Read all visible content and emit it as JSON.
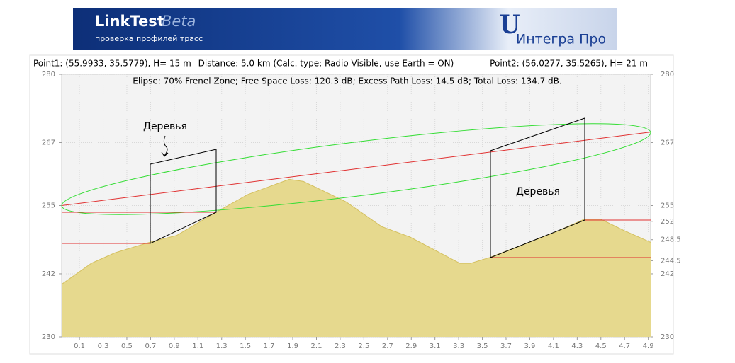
{
  "header": {
    "title": "LinkTest",
    "beta": "Beta",
    "subtitle": "проверка профилей трасс",
    "logo": "Интегра Про"
  },
  "chart_data": {
    "type": "area",
    "point1": "Point1: (55.9933, 35.5779), H= 15 m",
    "distance": "Distance: 5.0 km (Calc. type: Radio Visible, use Earth = ON)",
    "point2": "Point2: (56.0277, 35.5265), H= 21 m",
    "subtitle": "Elipse: 70% Frenel Zone;  Free Space Loss: 120.3 dB;  Excess Path Loss: 14.5 dB;  Total Loss: 134.7 dB.",
    "annotations": [
      "Деревья",
      "Деревья"
    ],
    "terrain": {
      "color": "#e6d98e",
      "x": [
        -0.05,
        0.2,
        0.4,
        0.69,
        0.92,
        1.25,
        1.52,
        1.87,
        1.99,
        2.35,
        2.65,
        2.89,
        3.31,
        3.4,
        3.56,
        4.09,
        4.36,
        4.5,
        4.69,
        4.92
      ],
      "values": [
        240,
        244,
        246,
        248,
        249.3,
        253.7,
        257.1,
        260,
        259.6,
        255.7,
        251,
        249,
        244,
        244,
        245.1,
        249.7,
        252.4,
        252.4,
        250.3,
        248
      ]
    },
    "line_of_sight": {
      "color": "#e03030",
      "x": [
        -0.05,
        4.92
      ],
      "values": [
        255,
        269
      ]
    },
    "xlim": [
      -0.05,
      4.92
    ],
    "xticks": [
      0.1,
      0.3,
      0.5,
      0.7,
      0.9,
      1.1,
      1.3,
      1.5,
      1.7,
      1.9,
      2.1,
      2.3,
      2.5,
      2.7,
      2.9,
      3.1,
      3.3,
      3.5,
      3.7,
      3.9,
      4.1,
      4.3,
      4.5,
      4.7,
      4.9
    ],
    "ylim": [
      230,
      280
    ],
    "yticks": [
      230,
      242,
      255,
      267,
      280
    ],
    "y2ticks": [
      230,
      242,
      244.5,
      248.5,
      252,
      255,
      267,
      280
    ],
    "grid": true
  }
}
